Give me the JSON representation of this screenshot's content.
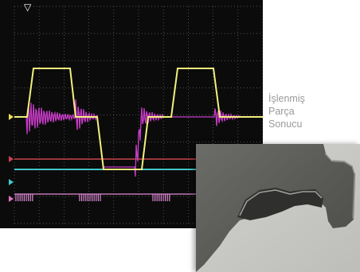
{
  "caption": {
    "lines": [
      "İşlenmiş",
      "Parça",
      "Sonucu"
    ]
  },
  "scope": {
    "background": "#0b0b0b",
    "grid_color": "#6a6a6a",
    "trigger_marker": "▽",
    "channel_colors": {
      "square": "#f3f07c",
      "oscillation": "#c83cc8",
      "red_line": "#c8464a",
      "cyan_line": "#43c7c7",
      "pink_pulses": "#e08ad6",
      "marker_yellow": "#f0e050",
      "marker_red": "#d04050",
      "marker_cyan": "#40c8d0",
      "marker_pink": "#e070c0"
    }
  },
  "photo": {
    "subject": "machined-metal-part",
    "colors": {
      "background": "#c9c9c6",
      "metal": "#5f5f5d",
      "highlight": "#9d9d99"
    }
  }
}
